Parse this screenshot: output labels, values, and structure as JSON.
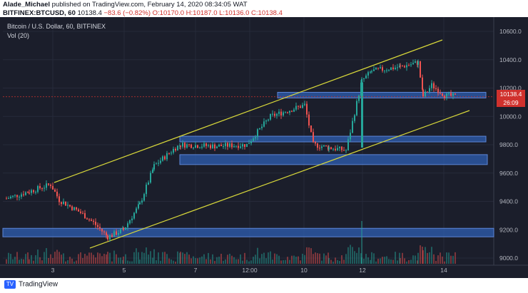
{
  "header": {
    "author": "Alade_Michael",
    "published_text": "published on TradingView.com, February 14, 2020 08:34:05 WAT",
    "symbol": "BITFINEX:BTCUSD, 60",
    "last": "10138.4",
    "change": "−83.6 (−0.82%)",
    "open": "O:10170.0",
    "high": "H:10187.0",
    "low": "L:10136.0",
    "close": "C:10138.4"
  },
  "chart": {
    "title": "Bitcoin / U.S. Dollar, 60, BITFINEX",
    "volume_label": "Vol (20)",
    "price_tag": "10138.4",
    "timer_tag": "26:09",
    "y_ticks": [
      "10600.0",
      "10400.0",
      "10200.0",
      "10000.0",
      "9800.0",
      "9600.0",
      "9400.0",
      "9200.0",
      "9000.0"
    ],
    "x_ticks": [
      "3",
      "5",
      "7",
      "12:00",
      "10",
      "12",
      "14"
    ],
    "colors": {
      "up": "#26a69a",
      "down": "#ef5350",
      "zone": "#2f5fb3",
      "trend": "#d8d83a",
      "bg": "#1b1e2b"
    },
    "chart_data": {
      "type": "candlestick",
      "symbol": "BTCUSD",
      "interval": "60",
      "exchange": "BITFINEX",
      "ylim": [
        8950,
        10650
      ],
      "zones": [
        {
          "low": 10130,
          "high": 10170
        },
        {
          "low": 9820,
          "high": 9860
        },
        {
          "low": 9660,
          "high": 9730
        },
        {
          "low": 9150,
          "high": 9210
        }
      ],
      "path": [
        [
          "1",
          9420
        ],
        [
          "2",
          9470
        ],
        [
          "2.6",
          9520
        ],
        [
          "3",
          9410
        ],
        [
          "3.6",
          9320
        ],
        [
          "4",
          9250
        ],
        [
          "4.4",
          9150
        ],
        [
          "5",
          9200
        ],
        [
          "5.6",
          9380
        ],
        [
          "6",
          9650
        ],
        [
          "6.6",
          9780
        ],
        [
          "7",
          9800
        ],
        [
          "8",
          9790
        ],
        [
          "9",
          9800
        ],
        [
          "9.6",
          10000
        ],
        [
          "10",
          10080
        ],
        [
          "10.4",
          9800
        ],
        [
          "10.8",
          9780
        ],
        [
          "11.2",
          9760
        ],
        [
          "11.4",
          10250
        ],
        [
          "12",
          10320
        ],
        [
          "12.6",
          10350
        ],
        [
          "13",
          10380
        ],
        [
          "13.4",
          10140
        ],
        [
          "13.8",
          10220
        ],
        [
          "14",
          10150
        ],
        [
          "14.3",
          10138
        ]
      ]
    }
  }
}
